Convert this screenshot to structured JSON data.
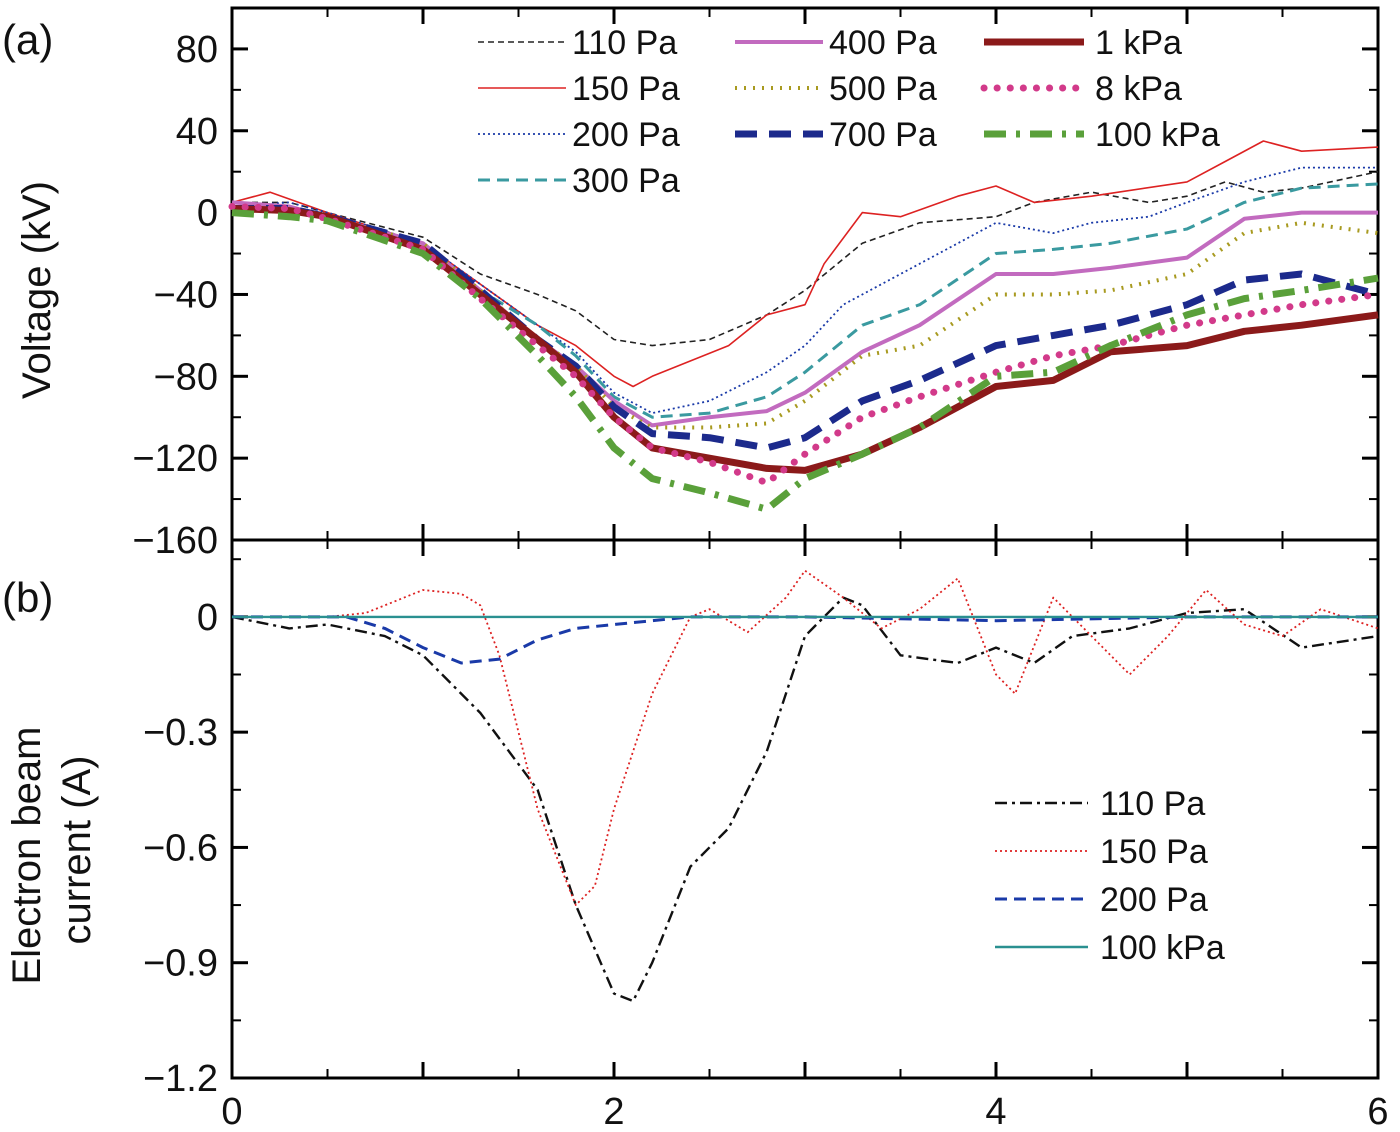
{
  "chart_data": [
    {
      "type": "line",
      "panel_label": "(a)",
      "ylabel": "Voltage (kV)",
      "xlim": [
        0,
        6
      ],
      "ylim": [
        -160,
        100
      ],
      "yticks": [
        80,
        40,
        0,
        -40,
        -80,
        -120,
        -160
      ],
      "ytick_labels": [
        "80",
        "40",
        "0",
        "−40",
        "−80",
        "−120",
        "−160"
      ],
      "legend_position": "top",
      "series": [
        {
          "name": "110 Pa",
          "color": "#222222",
          "style": "thin-dash",
          "x": [
            0,
            0.3,
            0.5,
            1.0,
            1.3,
            1.6,
            1.8,
            2.0,
            2.2,
            2.5,
            2.8,
            3.0,
            3.3,
            3.6,
            4.0,
            4.2,
            4.5,
            4.8,
            5.0,
            5.2,
            5.4,
            5.6,
            6.0
          ],
          "y": [
            5,
            5,
            0,
            -12,
            -30,
            -40,
            -48,
            -62,
            -65,
            -62,
            -50,
            -38,
            -15,
            -5,
            -2,
            5,
            10,
            5,
            8,
            15,
            10,
            12,
            20
          ]
        },
        {
          "name": "150 Pa",
          "color": "#dd2222",
          "style": "thin-solid",
          "x": [
            0,
            0.2,
            0.5,
            1.0,
            1.3,
            1.6,
            1.8,
            2.0,
            2.1,
            2.2,
            2.6,
            2.8,
            3.0,
            3.1,
            3.3,
            3.5,
            3.8,
            4.0,
            4.2,
            4.5,
            5.0,
            5.2,
            5.4,
            5.6,
            6.0
          ],
          "y": [
            5,
            10,
            0,
            -15,
            -35,
            -55,
            -65,
            -80,
            -85,
            -80,
            -65,
            -50,
            -45,
            -25,
            0,
            -2,
            8,
            13,
            5,
            8,
            15,
            25,
            35,
            30,
            32
          ]
        },
        {
          "name": "200 Pa",
          "color": "#1a3aa8",
          "style": "dotted",
          "x": [
            0,
            0.3,
            0.5,
            1.0,
            1.3,
            1.6,
            1.8,
            2.0,
            2.2,
            2.5,
            2.8,
            3.0,
            3.2,
            3.5,
            3.8,
            4.0,
            4.3,
            4.5,
            4.8,
            5.0,
            5.3,
            5.6,
            6.0
          ],
          "y": [
            3,
            5,
            0,
            -15,
            -35,
            -55,
            -68,
            -88,
            -98,
            -92,
            -78,
            -65,
            -45,
            -30,
            -15,
            -5,
            -10,
            -5,
            -2,
            5,
            15,
            22,
            22
          ]
        },
        {
          "name": "300 Pa",
          "color": "#3a9aa0",
          "style": "dash",
          "x": [
            0,
            0.3,
            0.5,
            1.0,
            1.3,
            1.6,
            1.8,
            2.0,
            2.2,
            2.5,
            2.8,
            3.0,
            3.3,
            3.6,
            4.0,
            4.3,
            4.6,
            5.0,
            5.3,
            5.6,
            6.0
          ],
          "y": [
            2,
            3,
            -2,
            -15,
            -38,
            -55,
            -70,
            -90,
            -100,
            -98,
            -90,
            -78,
            -55,
            -45,
            -20,
            -18,
            -15,
            -8,
            5,
            12,
            14
          ]
        },
        {
          "name": "400 Pa",
          "color": "#c26bbf",
          "style": "solid-medium",
          "x": [
            0,
            0.3,
            0.5,
            1.0,
            1.3,
            1.6,
            1.8,
            2.0,
            2.2,
            2.5,
            2.8,
            3.0,
            3.3,
            3.6,
            4.0,
            4.3,
            4.6,
            5.0,
            5.3,
            5.6,
            6.0
          ],
          "y": [
            5,
            3,
            -2,
            -15,
            -38,
            -62,
            -75,
            -92,
            -104,
            -100,
            -97,
            -88,
            -68,
            -55,
            -30,
            -30,
            -27,
            -22,
            -3,
            0,
            0
          ]
        },
        {
          "name": "500 Pa",
          "color": "#a89a20",
          "style": "dot-medium",
          "x": [
            0,
            0.3,
            0.5,
            1.0,
            1.3,
            1.6,
            1.8,
            2.0,
            2.2,
            2.5,
            2.8,
            3.0,
            3.3,
            3.6,
            4.0,
            4.3,
            4.6,
            5.0,
            5.3,
            5.6,
            6.0
          ],
          "y": [
            2,
            2,
            -2,
            -15,
            -38,
            -62,
            -75,
            -95,
            -105,
            -105,
            -103,
            -92,
            -70,
            -65,
            -40,
            -40,
            -38,
            -30,
            -10,
            -5,
            -10
          ]
        },
        {
          "name": "700 Pa",
          "color": "#1c2a8c",
          "style": "dash-thick",
          "x": [
            0,
            0.3,
            0.5,
            1.0,
            1.3,
            1.6,
            1.8,
            2.0,
            2.2,
            2.5,
            2.8,
            3.0,
            3.3,
            3.6,
            4.0,
            4.3,
            4.6,
            5.0,
            5.3,
            5.6,
            6.0
          ],
          "y": [
            2,
            2,
            -2,
            -15,
            -38,
            -62,
            -75,
            -95,
            -108,
            -110,
            -115,
            -110,
            -92,
            -82,
            -65,
            -60,
            -55,
            -45,
            -33,
            -30,
            -40
          ]
        },
        {
          "name": "1 kPa",
          "color": "#8b1a1a",
          "style": "solid-thick",
          "x": [
            0,
            0.3,
            0.5,
            1.0,
            1.3,
            1.6,
            1.8,
            2.0,
            2.2,
            2.5,
            2.8,
            3.0,
            3.3,
            3.6,
            4.0,
            4.3,
            4.6,
            5.0,
            5.3,
            5.6,
            6.0
          ],
          "y": [
            2,
            1,
            -2,
            -18,
            -40,
            -62,
            -78,
            -100,
            -115,
            -120,
            -125,
            -126,
            -118,
            -105,
            -85,
            -82,
            -68,
            -65,
            -58,
            -55,
            -50
          ]
        },
        {
          "name": "8 kPa",
          "color": "#d23a8a",
          "style": "dot-thick",
          "x": [
            0,
            0.3,
            0.5,
            1.0,
            1.3,
            1.6,
            1.8,
            2.0,
            2.2,
            2.5,
            2.8,
            3.0,
            3.3,
            3.6,
            4.0,
            4.3,
            4.6,
            5.0,
            5.3,
            5.6,
            6.0
          ],
          "y": [
            3,
            2,
            -3,
            -18,
            -42,
            -65,
            -80,
            -100,
            -115,
            -122,
            -132,
            -118,
            -100,
            -90,
            -78,
            -70,
            -65,
            -55,
            -50,
            -45,
            -40
          ]
        },
        {
          "name": "100 kPa",
          "color": "#5aa03a",
          "style": "dashdot-thick",
          "x": [
            0,
            0.3,
            0.5,
            1.0,
            1.3,
            1.6,
            1.8,
            2.0,
            2.2,
            2.5,
            2.8,
            3.0,
            3.3,
            3.6,
            4.0,
            4.3,
            4.6,
            5.0,
            5.3,
            5.6,
            6.0
          ],
          "y": [
            0,
            -2,
            -4,
            -20,
            -42,
            -70,
            -90,
            -115,
            -130,
            -137,
            -145,
            -130,
            -118,
            -105,
            -80,
            -78,
            -65,
            -50,
            -42,
            -38,
            -32
          ]
        }
      ]
    },
    {
      "type": "line",
      "panel_label": "(b)",
      "ylabel": "Electron beam current (A)",
      "ylabel_lines": [
        "Electron beam",
        "current (A)"
      ],
      "xlim": [
        0,
        6
      ],
      "ylim": [
        -1.2,
        0.2
      ],
      "yticks": [
        0,
        -0.3,
        -0.6,
        -0.9,
        -1.2
      ],
      "ytick_labels": [
        "0",
        "−0.3",
        "−0.6",
        "−0.9",
        "−1.2"
      ],
      "xticks": [
        0,
        2,
        4,
        6
      ],
      "xtick_labels": [
        "0",
        "2",
        "4",
        "6"
      ],
      "legend_position": "bottom-right",
      "series": [
        {
          "name": "110 Pa",
          "color": "#111111",
          "style": "dashdot",
          "x": [
            0,
            0.3,
            0.5,
            0.8,
            1.0,
            1.3,
            1.6,
            1.8,
            2.0,
            2.1,
            2.2,
            2.4,
            2.6,
            2.8,
            3.0,
            3.2,
            3.3,
            3.5,
            3.8,
            4.0,
            4.2,
            4.4,
            4.7,
            5.0,
            5.3,
            5.6,
            6.0
          ],
          "y": [
            0,
            -0.03,
            -0.02,
            -0.05,
            -0.1,
            -0.25,
            -0.45,
            -0.75,
            -0.98,
            -1.0,
            -0.9,
            -0.65,
            -0.55,
            -0.35,
            -0.05,
            0.05,
            0.03,
            -0.1,
            -0.12,
            -0.08,
            -0.12,
            -0.05,
            -0.03,
            0.01,
            0.02,
            -0.08,
            -0.05
          ]
        },
        {
          "name": "150 Pa",
          "color": "#dd2222",
          "style": "dotted",
          "x": [
            0,
            0.5,
            0.7,
            1.0,
            1.2,
            1.3,
            1.4,
            1.6,
            1.8,
            1.9,
            2.0,
            2.2,
            2.4,
            2.5,
            2.7,
            2.9,
            3.0,
            3.2,
            3.4,
            3.6,
            3.8,
            4.0,
            4.1,
            4.3,
            4.5,
            4.7,
            4.9,
            5.1,
            5.3,
            5.5,
            5.7,
            6.0
          ],
          "y": [
            0,
            0,
            0.01,
            0.07,
            0.06,
            0.03,
            -0.1,
            -0.5,
            -0.75,
            -0.7,
            -0.5,
            -0.2,
            0.0,
            0.02,
            -0.04,
            0.05,
            0.12,
            0.05,
            -0.03,
            0.02,
            0.1,
            -0.15,
            -0.2,
            0.05,
            -0.05,
            -0.15,
            -0.05,
            0.07,
            -0.02,
            -0.05,
            0.02,
            -0.03
          ]
        },
        {
          "name": "200 Pa",
          "color": "#1a3aa8",
          "style": "dash",
          "x": [
            0,
            0.6,
            0.8,
            1.0,
            1.2,
            1.4,
            1.6,
            1.8,
            2.0,
            2.4,
            3.0,
            4.0,
            5.0,
            6.0
          ],
          "y": [
            0,
            0,
            -0.03,
            -0.08,
            -0.12,
            -0.11,
            -0.06,
            -0.03,
            -0.02,
            0,
            0,
            -0.01,
            0,
            0
          ]
        },
        {
          "name": "100 kPa",
          "color": "#2a9090",
          "style": "solid",
          "x": [
            0,
            6
          ],
          "y": [
            0,
            0
          ]
        }
      ]
    }
  ]
}
